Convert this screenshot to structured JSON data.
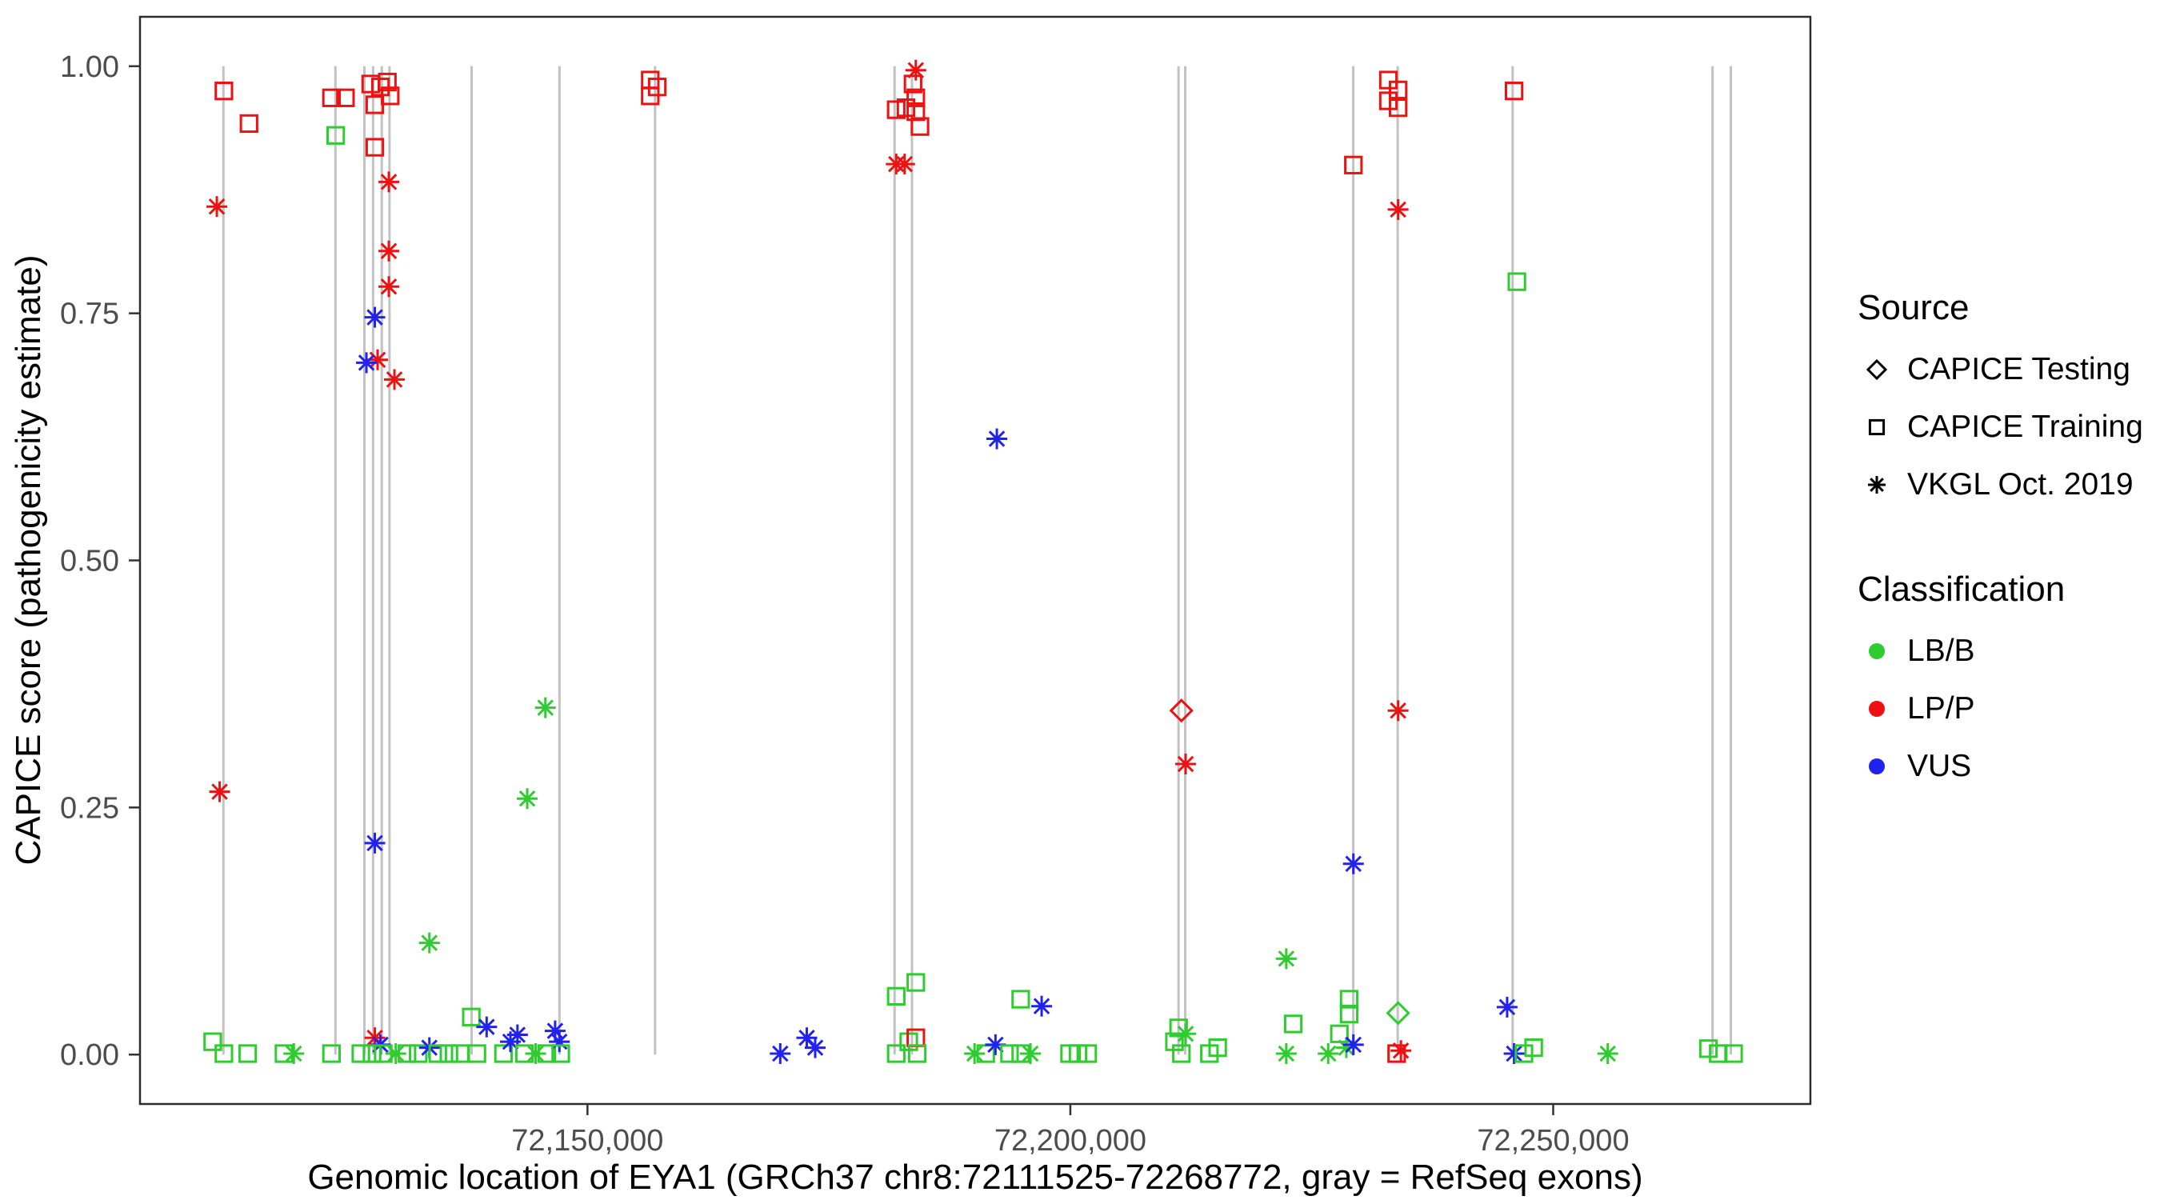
{
  "chart_data": {
    "type": "scatter",
    "title": "",
    "xlabel": "Genomic location of EYA1 (GRCh37 chr8:72111525-72268772, gray = RefSeq exons)",
    "ylabel": "CAPICE score (pathogenicity estimate)",
    "xlim": [
      72103663,
      72276634
    ],
    "ylim": [
      -0.05,
      1.05
    ],
    "grid": false,
    "legend_position": "right",
    "x_ticks": [
      {
        "value": 72150000,
        "label": "72,150,000"
      },
      {
        "value": 72200000,
        "label": "72,200,000"
      },
      {
        "value": 72250000,
        "label": "72,250,000"
      }
    ],
    "y_ticks": [
      {
        "value": 0.0,
        "label": "0.00"
      },
      {
        "value": 0.25,
        "label": "0.25"
      },
      {
        "value": 0.5,
        "label": "0.50"
      },
      {
        "value": 0.75,
        "label": "0.75"
      },
      {
        "value": 1.0,
        "label": "1.00"
      }
    ],
    "colors": {
      "LB/B": "#2ecc2e",
      "LP/P": "#ee1111",
      "VUS": "#2222ee",
      "exon": "#c2c2c2",
      "axis_text": "#4d4d4d",
      "panel_border": "#2b2b2b",
      "legend_key": "#000000"
    },
    "exon_lines_x": [
      72112300,
      72123900,
      72126900,
      72127800,
      72128700,
      72129500,
      72138000,
      72147100,
      72157000,
      72181800,
      72183600,
      72211200,
      72211900,
      72229300,
      72233900,
      72245800,
      72266500,
      72268400
    ],
    "legend": {
      "source": {
        "title": "Source",
        "items": [
          {
            "shape": "diamond",
            "label": "CAPICE Testing"
          },
          {
            "shape": "square",
            "label": "CAPICE Training"
          },
          {
            "shape": "asterisk",
            "label": "VKGL Oct. 2019"
          }
        ]
      },
      "classification": {
        "title": "Classification",
        "items": [
          {
            "class": "LB/B",
            "label": "LB/B"
          },
          {
            "class": "LP/P",
            "label": "LP/P"
          },
          {
            "class": "VUS",
            "label": "VUS"
          }
        ]
      }
    },
    "shape_to_source": {
      "diamond": "CAPICE Testing",
      "square": "CAPICE Training",
      "asterisk": "VKGL Oct. 2019"
    },
    "points_format": [
      "genomic_position",
      "capice_score",
      "shape",
      "classification"
    ],
    "points": [
      [
        72112350,
        0.975,
        "square",
        "LP/P"
      ],
      [
        72114950,
        0.942,
        "square",
        "LP/P"
      ],
      [
        72111620,
        0.858,
        "asterisk",
        "LP/P"
      ],
      [
        72111910,
        0.266,
        "asterisk",
        "LP/P"
      ],
      [
        72111190,
        0.013,
        "square",
        "LB/B"
      ],
      [
        72112350,
        0.001,
        "square",
        "LB/B"
      ],
      [
        72114810,
        0.001,
        "square",
        "LB/B"
      ],
      [
        72118570,
        0.001,
        "square",
        "LB/B"
      ],
      [
        72119590,
        0.001,
        "asterisk",
        "LB/B"
      ],
      [
        72123490,
        0.001,
        "square",
        "LB/B"
      ],
      [
        72123490,
        0.968,
        "square",
        "LP/P"
      ],
      [
        72124940,
        0.968,
        "square",
        "LP/P"
      ],
      [
        72123930,
        0.93,
        "square",
        "LB/B"
      ],
      [
        72127550,
        0.982,
        "square",
        "LP/P"
      ],
      [
        72128560,
        0.979,
        "square",
        "LP/P"
      ],
      [
        72129280,
        0.984,
        "square",
        "LP/P"
      ],
      [
        72127980,
        0.961,
        "square",
        "LP/P"
      ],
      [
        72129570,
        0.97,
        "square",
        "LP/P"
      ],
      [
        72127980,
        0.918,
        "square",
        "LP/P"
      ],
      [
        72129430,
        0.883,
        "asterisk",
        "LP/P"
      ],
      [
        72129430,
        0.813,
        "asterisk",
        "LP/P"
      ],
      [
        72129430,
        0.777,
        "asterisk",
        "LP/P"
      ],
      [
        72127980,
        0.746,
        "asterisk",
        "VUS"
      ],
      [
        72128270,
        0.703,
        "asterisk",
        "LP/P"
      ],
      [
        72127110,
        0.7,
        "asterisk",
        "VUS"
      ],
      [
        72130010,
        0.683,
        "asterisk",
        "LP/P"
      ],
      [
        72127980,
        0.214,
        "asterisk",
        "VUS"
      ],
      [
        72127980,
        0.017,
        "asterisk",
        "LP/P"
      ],
      [
        72128560,
        0.01,
        "asterisk",
        "VUS"
      ],
      [
        72126530,
        0.001,
        "square",
        "LB/B"
      ],
      [
        72127690,
        0.001,
        "square",
        "LB/B"
      ],
      [
        72128850,
        0.001,
        "square",
        "LB/B"
      ],
      [
        72130150,
        0.001,
        "asterisk",
        "LB/B"
      ],
      [
        72131310,
        0.001,
        "square",
        "LB/B"
      ],
      [
        72132470,
        0.001,
        "square",
        "LB/B"
      ],
      [
        72133630,
        0.113,
        "asterisk",
        "LB/B"
      ],
      [
        72133630,
        0.007,
        "asterisk",
        "VUS"
      ],
      [
        72134500,
        0.001,
        "square",
        "LB/B"
      ],
      [
        72135650,
        0.001,
        "square",
        "LB/B"
      ],
      [
        72136810,
        0.001,
        "square",
        "LB/B"
      ],
      [
        72137970,
        0.038,
        "square",
        "LB/B"
      ],
      [
        72138550,
        0.001,
        "square",
        "LB/B"
      ],
      [
        72139560,
        0.028,
        "asterisk",
        "VUS"
      ],
      [
        72141300,
        0.001,
        "square",
        "LB/B"
      ],
      [
        72142020,
        0.013,
        "asterisk",
        "VUS"
      ],
      [
        72142750,
        0.02,
        "asterisk",
        "VUS"
      ],
      [
        72143470,
        0.001,
        "square",
        "LB/B"
      ],
      [
        72144630,
        0.001,
        "asterisk",
        "LB/B"
      ],
      [
        72145640,
        0.351,
        "asterisk",
        "LB/B"
      ],
      [
        72143760,
        0.259,
        "asterisk",
        "LB/B"
      ],
      [
        72145790,
        0.001,
        "square",
        "LB/B"
      ],
      [
        72146650,
        0.024,
        "asterisk",
        "VUS"
      ],
      [
        72147090,
        0.013,
        "asterisk",
        "VUS"
      ],
      [
        72147230,
        0.001,
        "square",
        "LB/B"
      ],
      [
        72156500,
        0.986,
        "square",
        "LP/P"
      ],
      [
        72156500,
        0.97,
        "square",
        "LP/P"
      ],
      [
        72157220,
        0.979,
        "square",
        "LP/P"
      ],
      [
        72169960,
        0.001,
        "asterisk",
        "VUS"
      ],
      [
        72172710,
        0.017,
        "asterisk",
        "VUS"
      ],
      [
        72173580,
        0.007,
        "asterisk",
        "VUS"
      ],
      [
        72181970,
        0.956,
        "square",
        "LP/P"
      ],
      [
        72182980,
        0.958,
        "square",
        "LP/P"
      ],
      [
        72184000,
        0.996,
        "asterisk",
        "LP/P"
      ],
      [
        72183710,
        0.982,
        "square",
        "LP/P"
      ],
      [
        72184000,
        0.968,
        "square",
        "LP/P"
      ],
      [
        72184000,
        0.954,
        "square",
        "LP/P"
      ],
      [
        72184430,
        0.939,
        "square",
        "LP/P"
      ],
      [
        72181970,
        0.901,
        "asterisk",
        "LP/P"
      ],
      [
        72182840,
        0.901,
        "asterisk",
        "LP/P"
      ],
      [
        72181970,
        0.059,
        "square",
        "LB/B"
      ],
      [
        72184000,
        0.073,
        "square",
        "LB/B"
      ],
      [
        72181970,
        0.001,
        "square",
        "LB/B"
      ],
      [
        72183270,
        0.013,
        "square",
        "LB/B"
      ],
      [
        72184000,
        0.017,
        "square",
        "LP/P"
      ],
      [
        72184140,
        0.001,
        "square",
        "LB/B"
      ],
      [
        72192390,
        0.623,
        "asterisk",
        "VUS"
      ],
      [
        72190080,
        0.001,
        "asterisk",
        "LB/B"
      ],
      [
        72191240,
        0.001,
        "square",
        "LB/B"
      ],
      [
        72192250,
        0.01,
        "asterisk",
        "VUS"
      ],
      [
        72193700,
        0.001,
        "square",
        "LB/B"
      ],
      [
        72194860,
        0.056,
        "square",
        "LB/B"
      ],
      [
        72194860,
        0.001,
        "square",
        "LB/B"
      ],
      [
        72195870,
        0.001,
        "asterisk",
        "LB/B"
      ],
      [
        72197030,
        0.049,
        "asterisk",
        "VUS"
      ],
      [
        72199920,
        0.001,
        "square",
        "LB/B"
      ],
      [
        72200790,
        0.001,
        "square",
        "LB/B"
      ],
      [
        72201800,
        0.001,
        "square",
        "LB/B"
      ],
      [
        72210780,
        0.013,
        "square",
        "LB/B"
      ],
      [
        72211210,
        0.027,
        "square",
        "LB/B"
      ],
      [
        72211500,
        0.001,
        "square",
        "LB/B"
      ],
      [
        72211940,
        0.021,
        "asterisk",
        "LB/B"
      ],
      [
        72211500,
        0.348,
        "diamond",
        "LP/P"
      ],
      [
        72211940,
        0.294,
        "asterisk",
        "LP/P"
      ],
      [
        72214400,
        0.001,
        "square",
        "LB/B"
      ],
      [
        72215260,
        0.007,
        "square",
        "LB/B"
      ],
      [
        72222360,
        0.097,
        "asterisk",
        "LB/B"
      ],
      [
        72223080,
        0.031,
        "square",
        "LB/B"
      ],
      [
        72222360,
        0.001,
        "asterisk",
        "LB/B"
      ],
      [
        72226700,
        0.001,
        "asterisk",
        "LB/B"
      ],
      [
        72227860,
        0.021,
        "square",
        "LB/B"
      ],
      [
        72228580,
        0.007,
        "asterisk",
        "LB/B"
      ],
      [
        72228870,
        0.056,
        "square",
        "LB/B"
      ],
      [
        72228870,
        0.041,
        "square",
        "LB/B"
      ],
      [
        72229310,
        0.193,
        "asterisk",
        "VUS"
      ],
      [
        72229310,
        0.01,
        "asterisk",
        "VUS"
      ],
      [
        72229310,
        0.9,
        "square",
        "LP/P"
      ],
      [
        72232930,
        0.986,
        "square",
        "LP/P"
      ],
      [
        72232930,
        0.965,
        "square",
        "LP/P"
      ],
      [
        72233940,
        0.976,
        "square",
        "LP/P"
      ],
      [
        72233940,
        0.958,
        "square",
        "LP/P"
      ],
      [
        72233940,
        0.855,
        "asterisk",
        "LP/P"
      ],
      [
        72233940,
        0.348,
        "asterisk",
        "LP/P"
      ],
      [
        72233940,
        0.042,
        "diamond",
        "LB/B"
      ],
      [
        72233790,
        0.001,
        "square",
        "LP/P"
      ],
      [
        72234230,
        0.004,
        "asterisk",
        "LP/P"
      ],
      [
        72245230,
        0.048,
        "asterisk",
        "VUS"
      ],
      [
        72245950,
        0.001,
        "asterisk",
        "VUS"
      ],
      [
        72245950,
        0.975,
        "square",
        "LP/P"
      ],
      [
        72246240,
        0.782,
        "square",
        "LB/B"
      ],
      [
        72246970,
        0.001,
        "square",
        "LB/B"
      ],
      [
        72247980,
        0.007,
        "square",
        "LB/B"
      ],
      [
        72255650,
        0.001,
        "asterisk",
        "LB/B"
      ],
      [
        72266070,
        0.006,
        "square",
        "LB/B"
      ],
      [
        72267090,
        0.001,
        "square",
        "LB/B"
      ],
      [
        72268680,
        0.001,
        "square",
        "LB/B"
      ]
    ]
  }
}
